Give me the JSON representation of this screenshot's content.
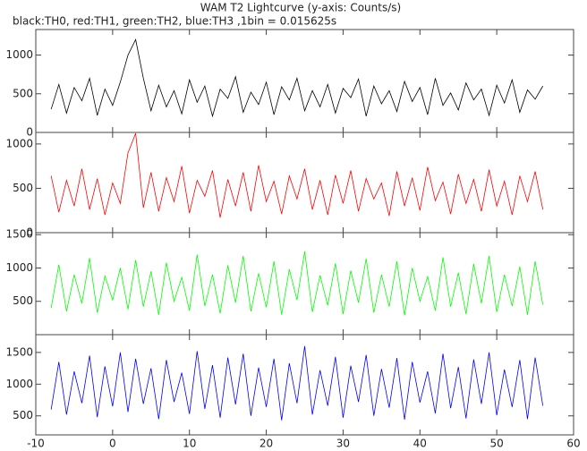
{
  "chart_data": [
    {
      "type": "line",
      "title": "WAM T2 Lightcurve (y-axis: Counts/s)",
      "subtitle": "black:TH0, red:TH1, green:TH2, blue:TH3 ,1bin = 0.015625s",
      "color": "#000000",
      "xlim": [
        -10,
        60
      ],
      "xticks": [
        -10,
        0,
        10,
        20,
        30,
        40,
        50,
        60
      ],
      "ylim": [
        0,
        1330
      ],
      "yticks": [
        0,
        500,
        1000
      ],
      "x": [
        -8,
        -7,
        -6,
        -5,
        -4,
        -3,
        -2,
        -1,
        0,
        1,
        2,
        3,
        4,
        5,
        6,
        7,
        8,
        9,
        10,
        11,
        12,
        13,
        14,
        15,
        16,
        17,
        18,
        19,
        20,
        21,
        22,
        23,
        24,
        25,
        26,
        27,
        28,
        29,
        30,
        31,
        32,
        33,
        34,
        35,
        36,
        37,
        38,
        39,
        40,
        41,
        42,
        43,
        44,
        45,
        46,
        47,
        48,
        49,
        50,
        51,
        52,
        53,
        54,
        55,
        56
      ],
      "values": [
        300,
        620,
        250,
        580,
        410,
        700,
        220,
        560,
        350,
        650,
        1000,
        1200,
        700,
        280,
        610,
        330,
        540,
        240,
        680,
        390,
        600,
        210,
        560,
        440,
        720,
        260,
        520,
        360,
        650,
        230,
        590,
        420,
        700,
        280,
        540,
        330,
        620,
        250,
        570,
        450,
        690,
        210,
        600,
        370,
        540,
        270,
        660,
        400,
        580,
        230,
        700,
        350,
        510,
        290,
        640,
        420,
        560,
        220,
        610,
        380,
        680,
        260,
        550,
        430,
        600
      ]
    },
    {
      "type": "line",
      "color": "#ff0000",
      "xlim": [
        -10,
        60
      ],
      "xticks": [
        -10,
        0,
        10,
        20,
        30,
        40,
        50,
        60
      ],
      "ylim": [
        0,
        1130
      ],
      "yticks": [
        0,
        500,
        1000
      ],
      "x": [
        -8,
        -7,
        -6,
        -5,
        -4,
        -3,
        -2,
        -1,
        0,
        1,
        2,
        3,
        4,
        5,
        6,
        7,
        8,
        9,
        10,
        11,
        12,
        13,
        14,
        15,
        16,
        17,
        18,
        19,
        20,
        21,
        22,
        23,
        24,
        25,
        26,
        27,
        28,
        29,
        30,
        31,
        32,
        33,
        34,
        35,
        36,
        37,
        38,
        39,
        40,
        41,
        42,
        43,
        44,
        45,
        46,
        47,
        48,
        49,
        50,
        51,
        52,
        53,
        54,
        55,
        56
      ],
      "values": [
        640,
        230,
        590,
        300,
        720,
        260,
        610,
        200,
        560,
        330,
        900,
        1120,
        280,
        680,
        240,
        620,
        350,
        750,
        220,
        590,
        410,
        700,
        170,
        600,
        300,
        680,
        240,
        760,
        350,
        580,
        210,
        640,
        380,
        720,
        260,
        590,
        200,
        650,
        330,
        700,
        240,
        610,
        380,
        560,
        190,
        690,
        300,
        620,
        250,
        740,
        360,
        570,
        210,
        660,
        330,
        600,
        240,
        710,
        300,
        580,
        200,
        640,
        350,
        690,
        260
      ]
    },
    {
      "type": "line",
      "color": "#00ff00",
      "xlim": [
        -10,
        60
      ],
      "xticks": [
        -10,
        0,
        10,
        20,
        30,
        40,
        50,
        60
      ],
      "ylim": [
        0,
        1530
      ],
      "yticks": [
        500,
        1000,
        1500
      ],
      "x": [
        -8,
        -7,
        -6,
        -5,
        -4,
        -3,
        -2,
        -1,
        0,
        1,
        2,
        3,
        4,
        5,
        6,
        7,
        8,
        9,
        10,
        11,
        12,
        13,
        14,
        15,
        16,
        17,
        18,
        19,
        20,
        21,
        22,
        23,
        24,
        25,
        26,
        27,
        28,
        29,
        30,
        31,
        32,
        33,
        34,
        35,
        36,
        37,
        38,
        39,
        40,
        41,
        42,
        43,
        44,
        45,
        46,
        47,
        48,
        49,
        50,
        51,
        52,
        53,
        54,
        55,
        56
      ],
      "values": [
        400,
        1050,
        350,
        900,
        470,
        1150,
        330,
        880,
        520,
        1000,
        380,
        1120,
        420,
        950,
        300,
        1080,
        500,
        860,
        360,
        1200,
        430,
        900,
        320,
        1040,
        480,
        1180,
        350,
        920,
        410,
        1100,
        300,
        980,
        520,
        1250,
        340,
        890,
        440,
        1070,
        310,
        960,
        480,
        1140,
        330,
        900,
        420,
        1100,
        290,
        1000,
        500,
        870,
        360,
        1160,
        420,
        930,
        310,
        1060,
        470,
        1180,
        340,
        900,
        430,
        1020,
        300,
        1100,
        450
      ]
    },
    {
      "type": "line",
      "color": "#0000ff",
      "xlim": [
        -10,
        60
      ],
      "xticks": [
        -10,
        0,
        10,
        20,
        30,
        40,
        50,
        60
      ],
      "ylim": [
        200,
        1780
      ],
      "yticks": [
        500,
        1000,
        1500
      ],
      "x": [
        -8,
        -7,
        -6,
        -5,
        -4,
        -3,
        -2,
        -1,
        0,
        1,
        2,
        3,
        4,
        5,
        6,
        7,
        8,
        9,
        10,
        11,
        12,
        13,
        14,
        15,
        16,
        17,
        18,
        19,
        20,
        21,
        22,
        23,
        24,
        25,
        26,
        27,
        28,
        29,
        30,
        31,
        32,
        33,
        34,
        35,
        36,
        37,
        38,
        39,
        40,
        41,
        42,
        43,
        44,
        45,
        46,
        47,
        48,
        49,
        50,
        51,
        52,
        53,
        54,
        55,
        56
      ],
      "values": [
        600,
        1350,
        520,
        1200,
        700,
        1450,
        480,
        1280,
        650,
        1500,
        560,
        1400,
        690,
        1250,
        450,
        1380,
        720,
        1180,
        530,
        1520,
        610,
        1300,
        470,
        1420,
        680,
        1480,
        500,
        1260,
        640,
        1400,
        430,
        1330,
        700,
        1600,
        520,
        1220,
        660,
        1430,
        470,
        1290,
        720,
        1460,
        500,
        1240,
        630,
        1410,
        440,
        1350,
        710,
        1200,
        540,
        1480,
        620,
        1270,
        460,
        1390,
        690,
        1500,
        510,
        1230,
        640,
        1380,
        450,
        1420,
        660
      ]
    }
  ]
}
